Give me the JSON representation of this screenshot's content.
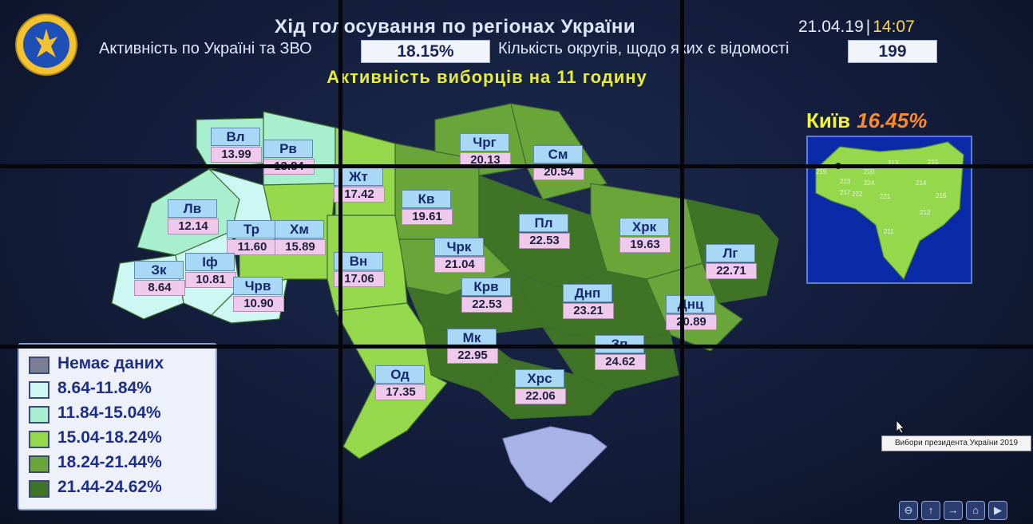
{
  "header": {
    "title": "Хід голосування по регіонах України",
    "date": "21.04.19",
    "separator": "|",
    "time": "14:07",
    "activity_label": "Активність по Україні та ЗВО",
    "activity_value": "18.15%",
    "districts_label": "Кількість округів, щодо яких є відомості",
    "districts_value": "199",
    "subtitle": "Активність виборців на 11 годину"
  },
  "colors": {
    "no_data": "#7a7f93",
    "c1": "#cdf7f3",
    "c2": "#a7efcf",
    "c3": "#96d84c",
    "c4": "#6aa53a",
    "c5": "#3f7426",
    "crimea": "#aab3e6",
    "accent_yellow": "#ffd84a",
    "accent_orange": "#ff8a2a"
  },
  "regions": [
    {
      "code": "Вл",
      "value": "13.99"
    },
    {
      "code": "Рв",
      "value": "13.84"
    },
    {
      "code": "Жт",
      "value": "17.42"
    },
    {
      "code": "Чрг",
      "value": "20.13"
    },
    {
      "code": "См",
      "value": "20.54"
    },
    {
      "code": "Лв",
      "value": "12.14"
    },
    {
      "code": "Кв",
      "value": "19.61"
    },
    {
      "code": "Тр",
      "value": "11.60"
    },
    {
      "code": "Хм",
      "value": "15.89"
    },
    {
      "code": "Пл",
      "value": "22.53"
    },
    {
      "code": "Хрк",
      "value": "19.63"
    },
    {
      "code": "Зк",
      "value": "8.64"
    },
    {
      "code": "Іф",
      "value": "10.81"
    },
    {
      "code": "Чрк",
      "value": "21.04"
    },
    {
      "code": "Вн",
      "value": "17.06"
    },
    {
      "code": "Лг",
      "value": "22.71"
    },
    {
      "code": "Чрв",
      "value": "10.90"
    },
    {
      "code": "Крв",
      "value": "22.53"
    },
    {
      "code": "Днп",
      "value": "23.21"
    },
    {
      "code": "Днц",
      "value": "20.89"
    },
    {
      "code": "Мк",
      "value": "22.95"
    },
    {
      "code": "Зп",
      "value": "24.62"
    },
    {
      "code": "Од",
      "value": "17.35"
    },
    {
      "code": "Хрс",
      "value": "22.06"
    }
  ],
  "kyiv": {
    "name": "Київ",
    "value": "16.45%",
    "districts": [
      "219",
      "220",
      "213",
      "215",
      "223",
      "224",
      "217",
      "222",
      "221",
      "214",
      "216",
      "212",
      "211"
    ]
  },
  "legend": [
    {
      "label": "Немає даних",
      "color_key": "no_data"
    },
    {
      "label": "8.64-11.84%",
      "color_key": "c1"
    },
    {
      "label": "11.84-15.04%",
      "color_key": "c2"
    },
    {
      "label": "15.04-18.24%",
      "color_key": "c3"
    },
    {
      "label": "18.24-21.44%",
      "color_key": "c4"
    },
    {
      "label": "21.44-24.62%",
      "color_key": "c5"
    }
  ],
  "tooltip": "Вибори президента України 2019",
  "nav_buttons": [
    {
      "icon": "zoom-icon",
      "glyph": "⊖"
    },
    {
      "icon": "up-arrow-icon",
      "glyph": "↑"
    },
    {
      "icon": "right-arrow-icon",
      "glyph": "→"
    },
    {
      "icon": "home-icon",
      "glyph": "⌂"
    },
    {
      "icon": "play-icon",
      "glyph": "▶"
    }
  ]
}
